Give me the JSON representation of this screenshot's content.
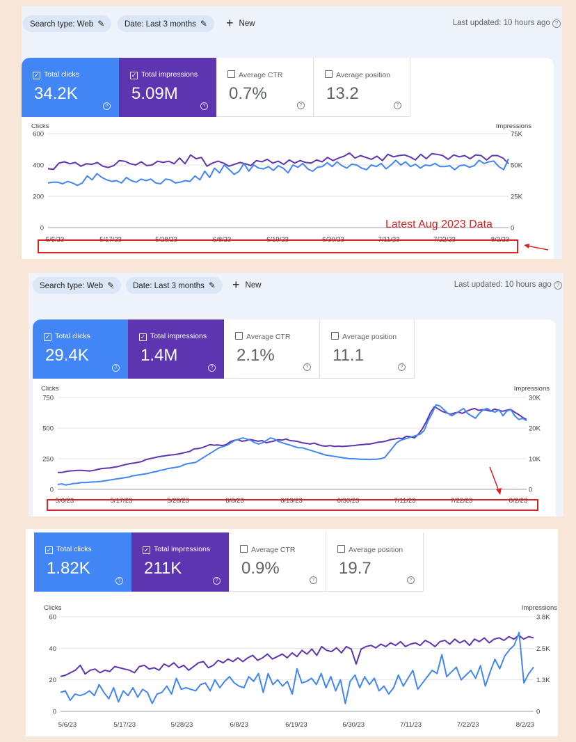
{
  "panels": [
    {
      "filters": {
        "search_type": "Search type: Web",
        "date": "Date: Last 3 months",
        "new_label": "New",
        "last_updated": "Last updated: 10 hours ago"
      },
      "metrics": {
        "clicks": {
          "label": "Total clicks",
          "value": "34.2K"
        },
        "impressions": {
          "label": "Total impressions",
          "value": "5.09M"
        },
        "ctr": {
          "label": "Average CTR",
          "value": "0.7%"
        },
        "position": {
          "label": "Average position",
          "value": "13.2"
        }
      },
      "annotation": "Latest Aug 2023 Data"
    },
    {
      "filters": {
        "search_type": "Search type: Web",
        "date": "Date: Last 3 months",
        "new_label": "New",
        "last_updated": "Last updated: 10 hours ago"
      },
      "metrics": {
        "clicks": {
          "label": "Total clicks",
          "value": "29.4K"
        },
        "impressions": {
          "label": "Total impressions",
          "value": "1.4M"
        },
        "ctr": {
          "label": "Average CTR",
          "value": "2.1%"
        },
        "position": {
          "label": "Average position",
          "value": "11.1"
        }
      }
    },
    {
      "metrics": {
        "clicks": {
          "label": "Total clicks",
          "value": "1.82K"
        },
        "impressions": {
          "label": "Total impressions",
          "value": "211K"
        },
        "ctr": {
          "label": "Average CTR",
          "value": "0.9%"
        },
        "position": {
          "label": "Average position",
          "value": "19.7"
        }
      }
    }
  ],
  "colors": {
    "clicks": "#4285f4",
    "impressions": "#5e35b1",
    "annotation": "#e02020"
  },
  "chart_data": [
    {
      "type": "line",
      "x_ticks": [
        "5/6/23",
        "5/17/23",
        "5/28/23",
        "6/8/23",
        "6/19/23",
        "6/30/23",
        "7/11/23",
        "7/22/23",
        "8/2/23"
      ],
      "y_left": {
        "label": "Clicks",
        "ticks": [
          "0",
          "200",
          "400",
          "600"
        ],
        "range": [
          0,
          600
        ]
      },
      "y_right": {
        "label": "Impressions",
        "ticks": [
          "0",
          "25K",
          "50K",
          "75K"
        ],
        "range": [
          0,
          75000
        ]
      },
      "series": [
        {
          "name": "Total impressions",
          "axis": "right",
          "color": "#5e35b1",
          "values": [
            47000,
            46500,
            51500,
            52500,
            51000,
            52000,
            49000,
            51000,
            50500,
            52000,
            49000,
            48000,
            49500,
            53500,
            53000,
            51000,
            50000,
            52500,
            49500,
            50000,
            53000,
            52000,
            53000,
            51000,
            55500,
            51000,
            58000,
            55000,
            56000,
            49000,
            51500,
            53000,
            51500,
            49000,
            50500,
            52000,
            51000,
            49500,
            53500,
            52500,
            54500,
            51500,
            53000,
            50500,
            54000,
            51500,
            53500,
            52000,
            51500,
            54000,
            52500,
            56000,
            53500,
            55500,
            57000,
            59500,
            55500,
            57500,
            56000,
            54500,
            57000,
            53500,
            58500,
            56500,
            57500,
            58000,
            56500,
            54000,
            58500,
            55000,
            59000,
            58500,
            57500,
            54500,
            58000,
            56500,
            57500,
            55000,
            58000,
            57500,
            54000,
            57500,
            57500,
            55500,
            51000
          ],
          "right_scaled": true
        },
        {
          "name": "Total clicks",
          "axis": "left",
          "color": "#4285f4",
          "values": [
            285,
            290,
            290,
            280,
            295,
            285,
            270,
            285,
            330,
            305,
            345,
            320,
            305,
            295,
            300,
            285,
            320,
            300,
            290,
            310,
            300,
            310,
            285,
            280,
            310,
            305,
            285,
            290,
            300,
            295,
            330,
            305,
            360,
            320,
            380,
            350,
            400,
            370,
            340,
            360,
            410,
            360,
            400,
            380,
            375,
            390,
            365,
            395,
            380,
            350,
            400,
            385,
            410,
            375,
            360,
            385,
            390,
            415,
            390,
            420,
            395,
            380,
            405,
            400,
            380,
            370,
            400,
            390,
            410,
            375,
            400,
            430,
            400,
            420,
            390,
            405,
            380,
            400,
            395,
            410,
            390,
            390,
            395,
            370,
            395,
            400,
            385,
            395,
            430,
            410,
            420,
            425,
            390,
            370,
            440
          ]
        }
      ]
    },
    {
      "type": "line",
      "x_ticks": [
        "5/6/23",
        "5/17/23",
        "5/28/23",
        "6/8/23",
        "6/19/23",
        "6/30/23",
        "7/11/23",
        "7/22/23",
        "8/2/23"
      ],
      "y_left": {
        "label": "Clicks",
        "ticks": [
          "0",
          "250",
          "500",
          "750"
        ],
        "range": [
          0,
          750
        ]
      },
      "y_right": {
        "label": "Impressions",
        "ticks": [
          "0",
          "10K",
          "20K",
          "30K"
        ],
        "range": [
          0,
          30000
        ]
      },
      "series": [
        {
          "name": "Total impressions",
          "axis": "right",
          "color": "#5e35b1",
          "values": [
            5500,
            5500,
            5800,
            6000,
            6100,
            6200,
            6200,
            6100,
            6000,
            6200,
            6500,
            6800,
            6900,
            7000,
            7200,
            7400,
            7800,
            8100,
            8400,
            8600,
            8800,
            9100,
            9700,
            10000,
            10300,
            10600,
            10800,
            11000,
            11200,
            11300,
            11500,
            11800,
            12100,
            12400,
            13200,
            13300,
            13600,
            14100,
            14600,
            14400,
            14500,
            14300,
            14600,
            15500,
            16000,
            16200,
            15700,
            15900,
            16300,
            16000,
            15700,
            15900,
            15200,
            15500,
            15800,
            16200,
            16100,
            16400,
            15900,
            15800,
            15600,
            15200,
            15000,
            14800,
            15100,
            14600,
            14200,
            14100,
            14300,
            14000,
            14100,
            14000,
            14100,
            14200,
            14300,
            14500,
            14600,
            14700,
            14800,
            15100,
            15400,
            15500,
            15800,
            16200,
            16400,
            16700,
            16600,
            17300,
            17200,
            16800,
            18000,
            19800,
            22200,
            25000,
            27000,
            26200,
            25400,
            25000,
            24500,
            24900,
            25200,
            24800,
            25500,
            26000,
            26400,
            25800,
            26000,
            25900,
            25500,
            26200,
            25800,
            25500,
            25800,
            26100,
            25200,
            24400,
            23500,
            22800
          ]
        },
        {
          "name": "Total clicks",
          "axis": "left",
          "color": "#4285f4",
          "values": [
            40,
            45,
            35,
            40,
            48,
            50,
            55,
            55,
            58,
            60,
            62,
            65,
            70,
            75,
            80,
            85,
            90,
            95,
            100,
            110,
            115,
            120,
            125,
            130,
            140,
            145,
            155,
            160,
            170,
            175,
            180,
            185,
            200,
            210,
            215,
            220,
            240,
            260,
            280,
            300,
            320,
            340,
            350,
            360,
            380,
            400,
            410,
            420,
            410,
            400,
            380,
            370,
            380,
            400,
            420,
            410,
            390,
            380,
            370,
            360,
            350,
            340,
            340,
            330,
            320,
            310,
            300,
            290,
            280,
            275,
            270,
            265,
            260,
            255,
            250,
            250,
            248,
            245,
            245,
            244,
            245,
            246,
            250,
            260,
            300,
            340,
            380,
            400,
            410,
            420,
            430,
            440,
            450,
            480,
            560,
            620,
            690,
            680,
            650,
            620,
            600,
            620,
            640,
            660,
            620,
            600,
            580,
            620,
            650,
            660,
            640,
            630,
            650,
            600,
            640,
            650,
            600,
            570,
            580,
            560
          ]
        }
      ]
    },
    {
      "type": "line",
      "x_ticks": [
        "5/6/23",
        "5/17/23",
        "5/28/23",
        "6/8/23",
        "6/19/23",
        "6/30/23",
        "7/11/23",
        "7/22/23",
        "8/2/23"
      ],
      "y_left": {
        "label": "Clicks",
        "ticks": [
          "0",
          "20",
          "40",
          "60"
        ],
        "range": [
          0,
          60
        ]
      },
      "y_right": {
        "label": "Impressions",
        "ticks": [
          "0",
          "1.3K",
          "2.5K",
          "3.8K"
        ],
        "range": [
          0,
          3800
        ]
      },
      "series": [
        {
          "name": "Total impressions",
          "axis": "right",
          "color": "#5e35b1",
          "values": [
            1400,
            1450,
            1550,
            1650,
            1850,
            1500,
            1650,
            1700,
            1550,
            1650,
            1600,
            1800,
            1750,
            1700,
            1650,
            1550,
            1800,
            1850,
            1700,
            1750,
            1650,
            1900,
            1800,
            1950,
            1750,
            1850,
            1650,
            1800,
            1950,
            2000,
            1750,
            1850,
            2050,
            1950,
            2100,
            2000,
            2150,
            2000,
            2150,
            2250,
            2050,
            2150,
            2300,
            2100,
            2200,
            2300,
            2150,
            2350,
            2200,
            2450,
            2300,
            2500,
            2250,
            2600,
            2450,
            2400,
            2550,
            2350,
            2600,
            2500,
            1900,
            2500,
            2600,
            2650,
            2550,
            2700,
            2600,
            2750,
            2650,
            2800,
            2600,
            2700,
            2750,
            2650,
            2850,
            2750,
            2600,
            2800,
            2850,
            2700,
            2900,
            2750,
            2850,
            2650,
            2900,
            2800,
            2950,
            2750,
            2900,
            2950,
            2850,
            3000,
            2900,
            3050,
            2900,
            3000,
            2950
          ]
        },
        {
          "name": "Total clicks",
          "axis": "left",
          "color": "#4285f4",
          "values": [
            12,
            13,
            7,
            11,
            10,
            11,
            13,
            10,
            17,
            12,
            8,
            15,
            6,
            13,
            10,
            15,
            9,
            14,
            12,
            5,
            11,
            12,
            16,
            11,
            21,
            14,
            15,
            14,
            13,
            17,
            18,
            13,
            20,
            15,
            19,
            22,
            18,
            16,
            15,
            22,
            19,
            24,
            12,
            24,
            17,
            20,
            16,
            19,
            11,
            27,
            18,
            19,
            21,
            17,
            24,
            15,
            22,
            13,
            20,
            5,
            19,
            23,
            15,
            22,
            17,
            21,
            13,
            16,
            11,
            15,
            23,
            16,
            21,
            26,
            14,
            18,
            22,
            26,
            24,
            36,
            22,
            25,
            28,
            20,
            23,
            26,
            21,
            29,
            16,
            25,
            33,
            27,
            35,
            39,
            42,
            50,
            18,
            24,
            28
          ]
        }
      ]
    }
  ]
}
